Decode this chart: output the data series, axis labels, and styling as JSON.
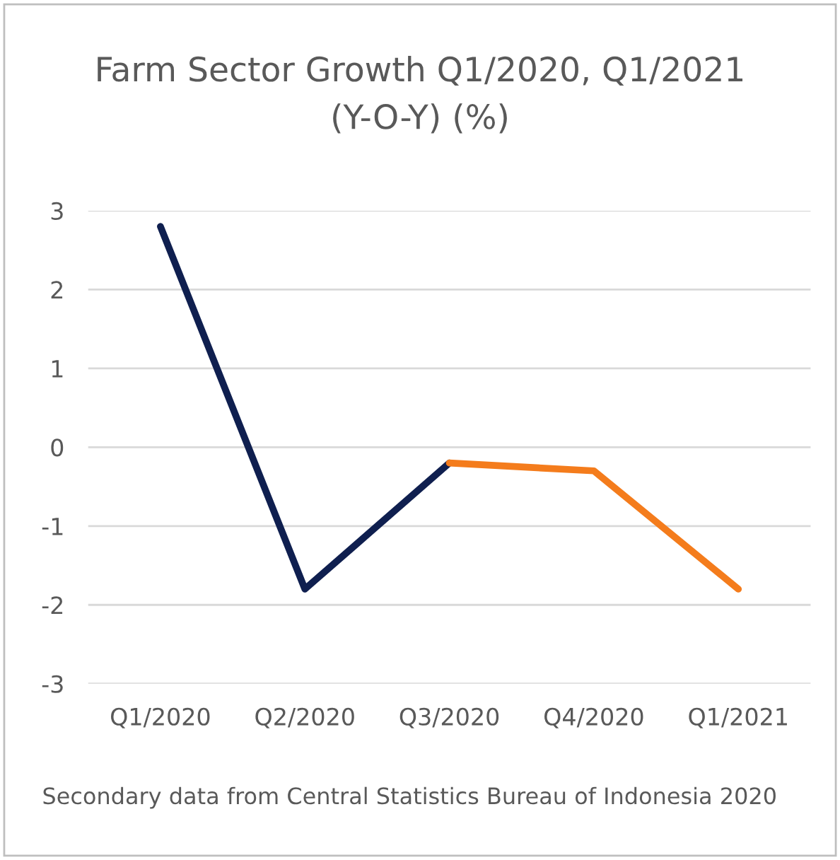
{
  "chart_data": {
    "type": "line",
    "title": "Farm Sector Growth Q1/2020, Q1/2021\n(Y-O-Y) (%)",
    "categories": [
      "Q1/2020",
      "Q2/2020",
      "Q3/2020",
      "Q4/2020",
      "Q1/2021"
    ],
    "series": [
      {
        "color": "#0f1f4f",
        "values": [
          2.8,
          -1.8,
          -0.2,
          null,
          null
        ]
      },
      {
        "color": "#f47c1c",
        "values": [
          null,
          null,
          -0.2,
          -0.3,
          -1.8
        ]
      }
    ],
    "ylim": [
      -3,
      3
    ],
    "yticks": [
      -3,
      -2,
      -1,
      0,
      1,
      2,
      3
    ],
    "grid": "y",
    "marker": "none",
    "line_style": "solid",
    "annotations": [
      "Secondary data from Central Statistics Bureau of Indonesia 2020"
    ]
  }
}
